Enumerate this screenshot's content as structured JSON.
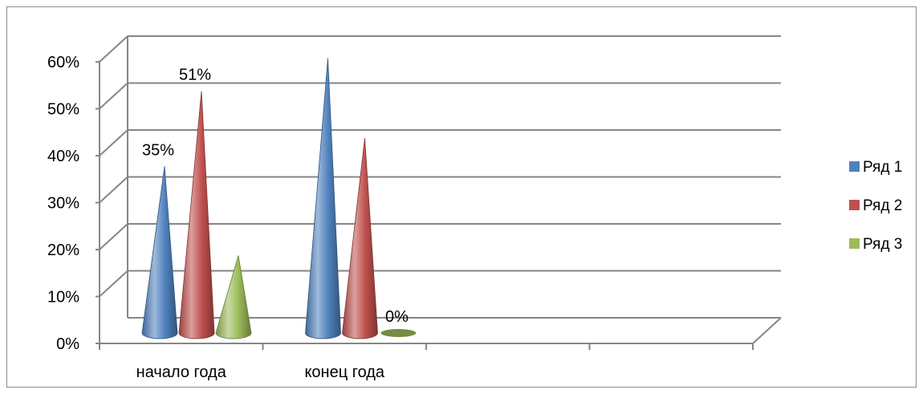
{
  "chart_data": {
    "type": "bar",
    "bar_shape": "cone-3d",
    "categories": [
      "начало года",
      "конец года",
      "",
      ""
    ],
    "series": [
      {
        "name": "Ряд 1",
        "color": "#4f81bd",
        "values": [
          35,
          58,
          null,
          null
        ],
        "labels": [
          "35%",
          "",
          "",
          ""
        ]
      },
      {
        "name": "Ряд 2",
        "color": "#c0504d",
        "values": [
          51,
          41,
          null,
          null
        ],
        "labels": [
          "51%",
          "",
          "",
          ""
        ]
      },
      {
        "name": "Ряд 3",
        "color": "#9bbb59",
        "values": [
          16,
          0,
          null,
          null
        ],
        "labels": [
          "",
          "0%",
          "",
          ""
        ]
      }
    ],
    "y_ticks": [
      "0%",
      "10%",
      "20%",
      "30%",
      "40%",
      "50%",
      "60%"
    ],
    "ylim": [
      0,
      60
    ],
    "title": "",
    "xlabel": "",
    "ylabel": "",
    "grid": true,
    "legend_position": "right"
  }
}
